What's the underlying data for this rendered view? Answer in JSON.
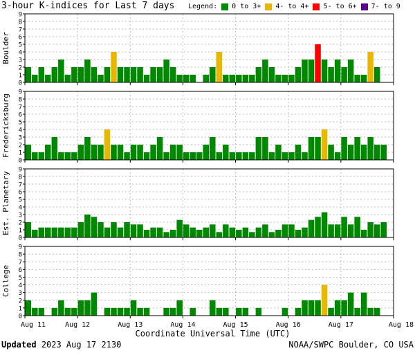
{
  "title": "3-hour K-indices for Last 7 days",
  "legend": {
    "label": "Legend:",
    "items": [
      {
        "text": "0 to 3+",
        "color": "#008800"
      },
      {
        "text": "4- to 4+",
        "color": "#E8B800"
      },
      {
        "text": "5- to 6+",
        "color": "#FF0000"
      },
      {
        "text": "7- to 9",
        "color": "#5A008A"
      }
    ]
  },
  "footer": {
    "updated_label": "Updated",
    "updated_value": "2023 Aug 17 2130",
    "org": "NOAA/SWPC Boulder, CO USA"
  },
  "chart_data": [
    {
      "type": "bar",
      "ylabel": "Boulder",
      "ylim": [
        0,
        9
      ],
      "yticks": [
        0,
        1,
        2,
        3,
        4,
        5,
        6,
        7,
        8,
        9
      ],
      "xlabel": "Coordinate Universal Time (UTC)",
      "x_tick_labels": [
        "Aug 11",
        "Aug 12",
        "Aug 13",
        "Aug 14",
        "Aug 15",
        "Aug 16",
        "Aug 17",
        "Aug 18"
      ],
      "grid": true,
      "values": [
        2,
        1,
        2,
        1,
        2,
        3,
        1,
        2,
        2,
        3,
        2,
        1,
        2,
        4,
        2,
        2,
        2,
        2,
        1,
        2,
        2,
        3,
        2,
        1,
        1,
        1,
        0,
        1,
        2,
        4,
        1,
        1,
        1,
        1,
        1,
        2,
        3,
        2,
        1,
        1,
        1,
        2,
        3,
        3,
        5,
        3,
        2,
        3,
        2,
        3,
        1,
        1,
        4,
        2,
        0
      ]
    },
    {
      "type": "bar",
      "ylabel": "Fredericksburg",
      "ylim": [
        0,
        9
      ],
      "yticks": [
        0,
        1,
        2,
        3,
        4,
        5,
        6,
        7,
        8,
        9
      ],
      "x_tick_labels": [
        "Aug 11",
        "Aug 12",
        "Aug 13",
        "Aug 14",
        "Aug 15",
        "Aug 16",
        "Aug 17",
        "Aug 18"
      ],
      "grid": true,
      "values": [
        2,
        1,
        1,
        2,
        3,
        1,
        1,
        1,
        2,
        3,
        2,
        2,
        4,
        2,
        2,
        1,
        2,
        2,
        1,
        2,
        3,
        1,
        2,
        2,
        1,
        1,
        1,
        2,
        3,
        1,
        2,
        1,
        1,
        1,
        1,
        3,
        3,
        1,
        2,
        1,
        1,
        2,
        1,
        3,
        3,
        4,
        2,
        1,
        3,
        2,
        3,
        2,
        3,
        2,
        2,
        0
      ]
    },
    {
      "type": "bar",
      "ylabel": "Est. Planetary",
      "ylim": [
        0,
        9
      ],
      "yticks": [
        0,
        1,
        2,
        3,
        4,
        5,
        6,
        7,
        8,
        9
      ],
      "x_tick_labels": [
        "Aug 11",
        "Aug 12",
        "Aug 13",
        "Aug 14",
        "Aug 15",
        "Aug 16",
        "Aug 17",
        "Aug 18"
      ],
      "grid": true,
      "values": [
        2,
        1,
        1.3,
        1.3,
        1.3,
        1.3,
        1.3,
        1.3,
        2,
        3,
        2.7,
        2,
        1.3,
        2,
        1.3,
        2,
        1.7,
        1.7,
        1,
        1.3,
        1.3,
        0.7,
        1,
        2.3,
        1.7,
        1.3,
        1,
        1.3,
        1.7,
        0.7,
        1.7,
        1.3,
        1,
        1.3,
        0.7,
        1.3,
        1.7,
        0.7,
        1,
        1.7,
        1.7,
        1,
        1.3,
        2.3,
        2.7,
        3.3,
        1.7,
        1.7,
        2.7,
        1.7,
        2.7,
        1,
        2,
        1.7,
        2
      ]
    },
    {
      "type": "bar",
      "ylabel": "College",
      "ylim": [
        0,
        9
      ],
      "yticks": [
        0,
        1,
        2,
        3,
        4,
        5,
        6,
        7,
        8,
        9
      ],
      "x_tick_labels": [
        "Aug 11",
        "Aug 12",
        "Aug 13",
        "Aug 14",
        "Aug 15",
        "Aug 16",
        "Aug 17",
        "Aug 18"
      ],
      "grid": true,
      "values": [
        2,
        1,
        1,
        0,
        1,
        2,
        1,
        1,
        2,
        2,
        3,
        0,
        1,
        1,
        1,
        1,
        2,
        1,
        1,
        0,
        0,
        1,
        1,
        2,
        0,
        1,
        0,
        0,
        2,
        1,
        1,
        0,
        1,
        1,
        0,
        1,
        0,
        0,
        0,
        1,
        0,
        1,
        2,
        2,
        2,
        4,
        1,
        2,
        2,
        3,
        1,
        3,
        1,
        1,
        0,
        0
      ]
    }
  ]
}
